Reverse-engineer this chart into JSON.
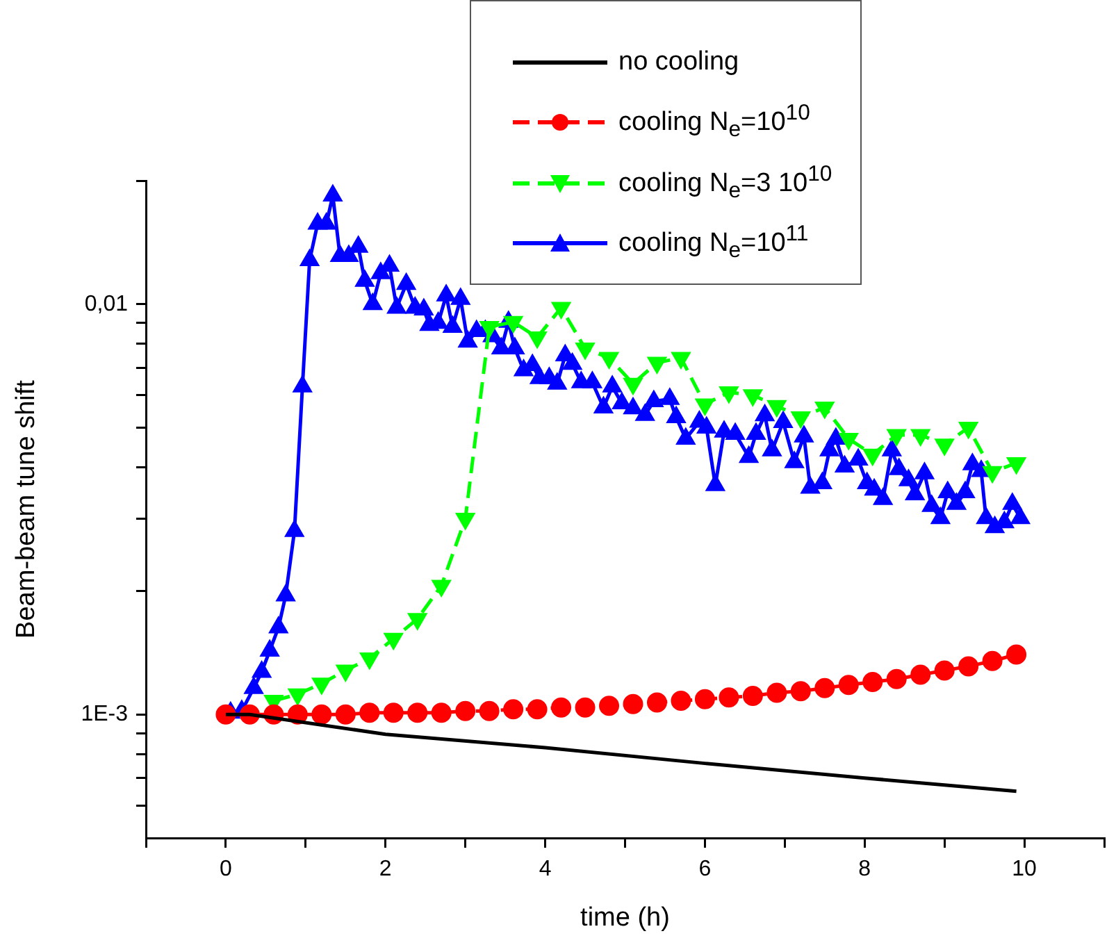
{
  "chart_data": {
    "type": "line",
    "xlabel": "time (h)",
    "ylabel": "Beam-beam tune shift",
    "log": "y",
    "grid": false,
    "legend": "top",
    "xlim": [
      -1,
      11
    ],
    "xticks": [
      {
        "value": -1,
        "label": null
      },
      0,
      {
        "value": 1,
        "label": null
      },
      2,
      {
        "value": 3,
        "label": null
      },
      4,
      {
        "value": 5,
        "label": null
      },
      6,
      {
        "value": 7,
        "label": null
      },
      8,
      {
        "value": 9,
        "label": null
      },
      10,
      {
        "value": 11,
        "label": null
      }
    ],
    "ylim": [
      0.0005,
      0.02
    ],
    "yticks": [
      {
        "value": 0.0006,
        "label": null
      },
      {
        "value": 0.0007,
        "label": null
      },
      {
        "value": 0.0008,
        "label": null
      },
      {
        "value": 0.0009,
        "label": null
      },
      {
        "value": 0.001,
        "label": "1E-3"
      },
      {
        "value": 0.002,
        "label": null
      },
      {
        "value": 0.003,
        "label": null
      },
      {
        "value": 0.004,
        "label": null
      },
      {
        "value": 0.005,
        "label": null
      },
      {
        "value": 0.006,
        "label": null
      },
      {
        "value": 0.007,
        "label": null
      },
      {
        "value": 0.008,
        "label": null
      },
      {
        "value": 0.009,
        "label": null
      },
      {
        "value": 0.01,
        "label": "0,01"
      },
      {
        "value": 0.02,
        "label": null
      }
    ],
    "x": [
      0,
      0.3,
      0.6,
      0.9,
      1.2,
      1.5,
      1.8,
      2.1,
      2.4,
      2.7,
      3.0,
      3.3,
      3.6,
      3.9,
      4.2,
      4.5,
      4.8,
      5.1,
      5.4,
      5.7,
      6.0,
      6.3,
      6.6,
      6.9,
      7.2,
      7.5,
      7.8,
      8.1,
      8.4,
      8.7,
      9.0,
      9.3,
      9.6,
      9.9
    ],
    "series": [
      {
        "name": "no cooling",
        "color": "#000000",
        "marker": "none",
        "line_style": "solid",
        "x": [
          0,
          0.3,
          2,
          4,
          6,
          8,
          9.9
        ],
        "values": [
          0.001,
          0.001,
          0.000895,
          0.00083,
          0.00076,
          0.0007,
          0.00065
        ]
      },
      {
        "name": "cooling N$_{e}$=10$^{10}$",
        "color": "#ff0000",
        "marker": "circle",
        "line_style": "dashed",
        "values": [
          0.001,
          0.001,
          0.001,
          0.001,
          0.001,
          0.001,
          0.00101,
          0.00101,
          0.00101,
          0.00101,
          0.00102,
          0.00102,
          0.00103,
          0.00103,
          0.00104,
          0.00104,
          0.00105,
          0.00106,
          0.00107,
          0.00108,
          0.00109,
          0.0011,
          0.00111,
          0.00113,
          0.00114,
          0.00116,
          0.00118,
          0.0012,
          0.00122,
          0.00125,
          0.00128,
          0.00131,
          0.00135,
          0.0014
        ]
      },
      {
        "name": "cooling N$_{e}$=3 10$^{10}$",
        "color": "#00ff00",
        "marker": "triangle_down",
        "line_style": "dashed",
        "values": [
          null,
          null,
          0.00108,
          0.00112,
          0.00119,
          0.00128,
          0.00137,
          0.00153,
          0.00171,
          0.00206,
          0.003,
          0.0088,
          0.00905,
          0.0083,
          0.0098,
          0.0078,
          0.0074,
          0.0064,
          0.0072,
          0.0074,
          0.0057,
          0.0061,
          0.006,
          0.00565,
          0.0053,
          0.0056,
          0.0047,
          0.0043,
          0.0048,
          0.0048,
          0.00455,
          0.005,
          0.0039,
          0.0041
        ]
      },
      {
        "name": "cooling N$_{e}$=10$^{11}$",
        "color": "#0000ff",
        "marker": "triangle",
        "line_style": "solid",
        "x": [
          0.06,
          0.2,
          0.35,
          0.45,
          0.55,
          0.66,
          0.75,
          0.86,
          0.96,
          1.05,
          1.15,
          1.26,
          1.34,
          1.43,
          1.54,
          1.66,
          1.74,
          1.84,
          1.94,
          2.05,
          2.14,
          2.26,
          2.37,
          2.48,
          2.55,
          2.66,
          2.76,
          2.84,
          2.94,
          3.03,
          3.14,
          3.25,
          3.34,
          3.45,
          3.54,
          3.62,
          3.73,
          3.84,
          3.93,
          4.05,
          4.15,
          4.25,
          4.34,
          4.45,
          4.59,
          4.73,
          4.84,
          4.96,
          5.1,
          5.25,
          5.36,
          5.56,
          5.64,
          5.76,
          5.93,
          6.02,
          6.13,
          6.24,
          6.38,
          6.55,
          6.64,
          6.75,
          6.84,
          6.98,
          7.12,
          7.24,
          7.32,
          7.47,
          7.56,
          7.64,
          7.75,
          7.92,
          8.03,
          8.12,
          8.23,
          8.34,
          8.43,
          8.55,
          8.63,
          8.75,
          8.84,
          8.95,
          9.04,
          9.15,
          9.26,
          9.35,
          9.46,
          9.52,
          9.63,
          9.75,
          9.85,
          9.95
        ],
        "values": [
          0.00101,
          0.00102,
          0.00116,
          0.00127,
          0.00143,
          0.00163,
          0.00195,
          0.0028,
          0.0063,
          0.0128,
          0.0157,
          0.0157,
          0.0184,
          0.0131,
          0.0131,
          0.0138,
          0.0114,
          0.01,
          0.0119,
          0.0124,
          0.0098,
          0.0112,
          0.0098,
          0.0097,
          0.0089,
          0.009,
          0.0105,
          0.0088,
          0.0103,
          0.0081,
          0.0086,
          0.0086,
          0.00835,
          0.0078,
          0.00905,
          0.0078,
          0.0069,
          0.0071,
          0.0066,
          0.0066,
          0.0064,
          0.0075,
          0.00715,
          0.00645,
          0.00645,
          0.0056,
          0.0063,
          0.00573,
          0.00557,
          0.00537,
          0.0058,
          0.00587,
          0.0053,
          0.0047,
          0.00517,
          0.005,
          0.00362,
          0.00489,
          0.00483,
          0.00424,
          0.00483,
          0.00536,
          0.0044,
          0.00516,
          0.00412,
          0.00476,
          0.00357,
          0.00366,
          0.0044,
          0.0047,
          0.00402,
          0.00418,
          0.00366,
          0.00353,
          0.00335,
          0.0044,
          0.00396,
          0.00372,
          0.00344,
          0.00387,
          0.00322,
          0.00301,
          0.00348,
          0.00326,
          0.00348,
          0.00407,
          0.00392,
          0.00301,
          0.00286,
          0.00294,
          0.00326,
          0.00301
        ]
      }
    ]
  }
}
